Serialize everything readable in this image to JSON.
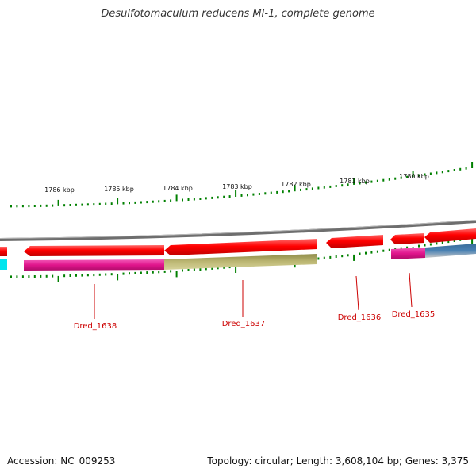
{
  "title": "Desulfotomaculum reducens MI-1, complete genome",
  "footer": {
    "accession": "Accession: NC_009253",
    "summary": "Topology: circular; Length: 3,608,104 bp; Genes: 3,375"
  },
  "scale_labels": [
    "1786 kbp",
    "1785 kbp",
    "1784 kbp",
    "1783 kbp",
    "1782 kbp",
    "1781 kbp",
    "1780 kbp"
  ],
  "gene_labels": [
    "Dred_1638",
    "Dred_1637",
    "Dred_1636",
    "Dred_1635"
  ],
  "colors": {
    "background": "#ffffff",
    "backbone": "#808080",
    "cds_arrow": "#ff0000",
    "tick": "#008000",
    "label": "#cc0000",
    "feature_magenta": "#e0158c",
    "feature_olive": "#b5b06a",
    "feature_blue": "#4a82b4",
    "feature_cyan": "#00e5ee"
  }
}
